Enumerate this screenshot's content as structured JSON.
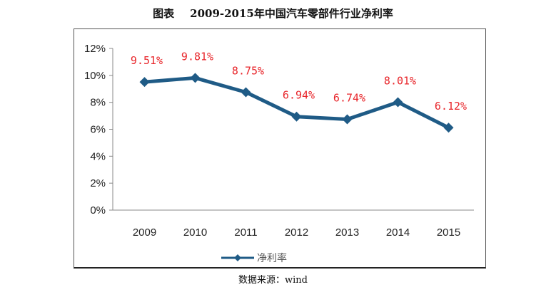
{
  "chart_data": {
    "type": "line",
    "title_prefix": "图表",
    "title": "2009-2015年中国汽车零部件行业净利率",
    "categories": [
      "2009",
      "2010",
      "2011",
      "2012",
      "2013",
      "2014",
      "2015"
    ],
    "series": [
      {
        "name": "净利率",
        "values": [
          9.51,
          9.81,
          8.75,
          6.94,
          6.74,
          8.01,
          6.12
        ],
        "labels": [
          "9.51%",
          "9.81%",
          "8.75%",
          "6.94%",
          "6.74%",
          "8.01%",
          "6.12%"
        ]
      }
    ],
    "ylim": [
      0,
      12
    ],
    "yticks": [
      "0%",
      "2%",
      "4%",
      "6%",
      "8%",
      "10%",
      "12%"
    ],
    "grid": false,
    "legend": "bottom",
    "colors": {
      "line": "#1f5b86",
      "label": "#e8262b"
    }
  },
  "source": {
    "label": "数据来源：",
    "value": "wind"
  }
}
